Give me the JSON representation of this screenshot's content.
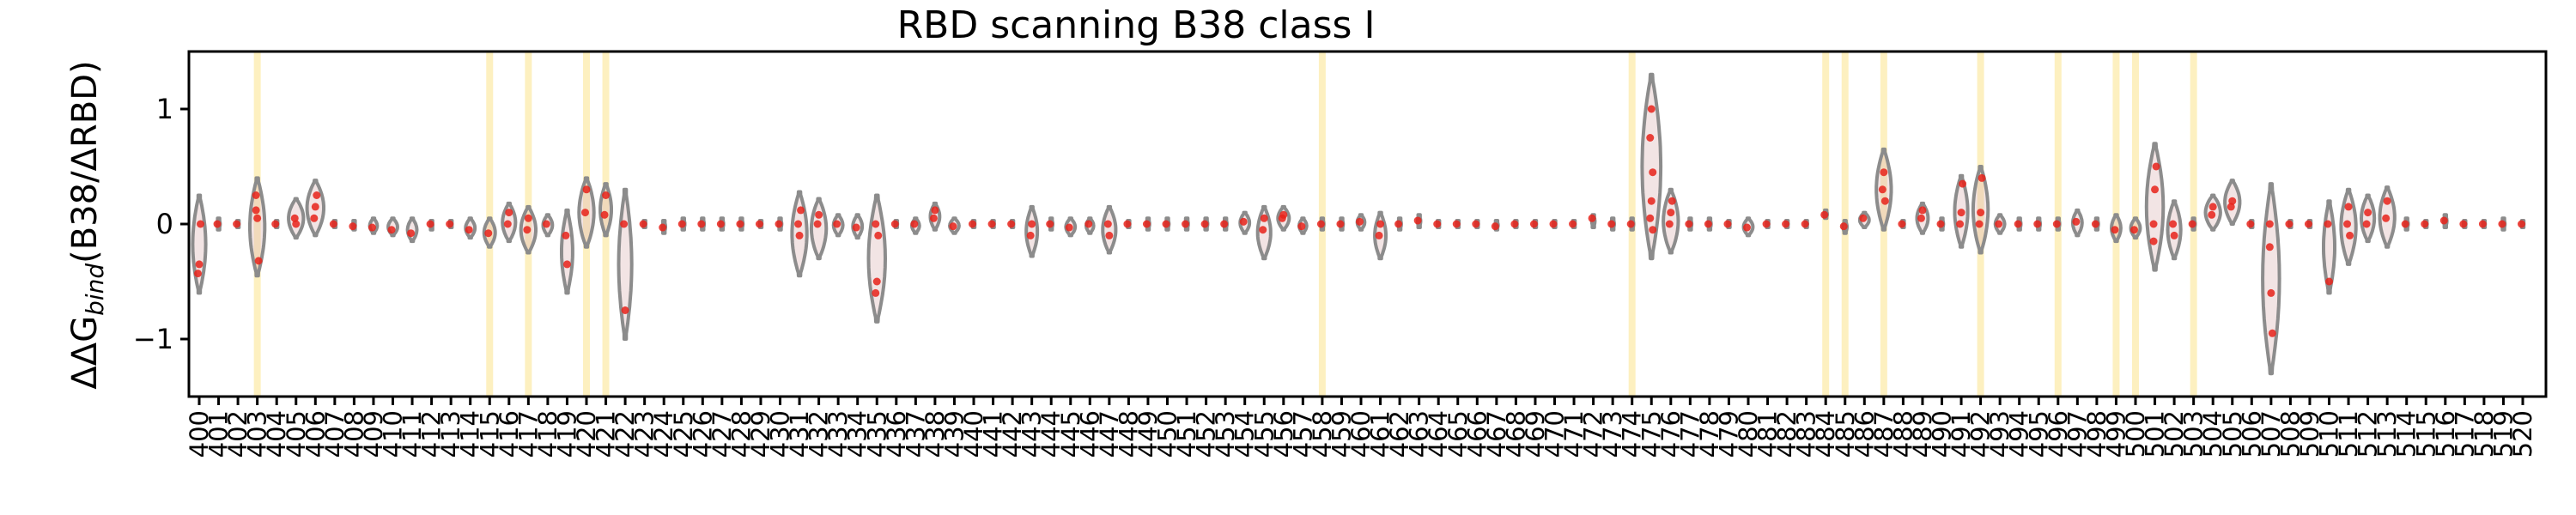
{
  "chart_data": {
    "type": "violin",
    "title": "RBD scanning B38 class I",
    "xlabel": "",
    "ylabel_prefix": "ΔΔG",
    "ylabel_subscript": "bind",
    "ylabel_suffix": "(B38/ΔRBD)",
    "xlim": [
      400,
      520
    ],
    "ylim": [
      -1.5,
      1.5
    ],
    "yticks": [
      -1,
      0,
      1
    ],
    "ytick_labels": [
      "−1",
      "0",
      "1"
    ],
    "grid": false,
    "colors": {
      "violin_edge": "#8c8c8c",
      "violin_fill": "#d9b3b3",
      "point": "#e8221a",
      "highlight": "#fdf0c0"
    },
    "highlighted_residues": [
      403,
      415,
      417,
      420,
      421,
      458,
      474,
      484,
      485,
      487,
      492,
      496,
      499,
      500,
      503
    ],
    "residues": [
      {
        "x": 400,
        "min": -0.6,
        "max": 0.25,
        "w": 0.7,
        "pts": [
          -0.43,
          -0.35,
          0.0
        ]
      },
      {
        "x": 401,
        "min": -0.05,
        "max": 0.05,
        "w": 0.4,
        "pts": [
          0.0
        ]
      },
      {
        "x": 402,
        "min": -0.03,
        "max": 0.03,
        "w": 0.3,
        "pts": [
          0.0
        ]
      },
      {
        "x": 403,
        "min": -0.45,
        "max": 0.4,
        "w": 0.8,
        "pts": [
          0.12,
          0.05,
          -0.32,
          0.25
        ]
      },
      {
        "x": 404,
        "min": -0.03,
        "max": 0.03,
        "w": 0.3,
        "pts": [
          0.0
        ]
      },
      {
        "x": 405,
        "min": -0.12,
        "max": 0.22,
        "w": 0.8,
        "pts": [
          0.05,
          0.0
        ]
      },
      {
        "x": 406,
        "min": -0.1,
        "max": 0.38,
        "w": 0.9,
        "pts": [
          0.05,
          0.15,
          0.25
        ]
      },
      {
        "x": 407,
        "min": -0.03,
        "max": 0.03,
        "w": 0.3,
        "pts": [
          0.0
        ]
      },
      {
        "x": 408,
        "min": -0.05,
        "max": 0.03,
        "w": 0.3,
        "pts": [
          -0.02
        ]
      },
      {
        "x": 409,
        "min": -0.08,
        "max": 0.05,
        "w": 0.4,
        "pts": [
          -0.03
        ]
      },
      {
        "x": 410,
        "min": -0.1,
        "max": 0.05,
        "w": 0.5,
        "pts": [
          -0.05
        ]
      },
      {
        "x": 411,
        "min": -0.15,
        "max": 0.05,
        "w": 0.5,
        "pts": [
          -0.08
        ]
      },
      {
        "x": 412,
        "min": -0.05,
        "max": 0.03,
        "w": 0.3,
        "pts": [
          0.0
        ]
      },
      {
        "x": 413,
        "min": -0.03,
        "max": 0.03,
        "w": 0.3,
        "pts": [
          0.0
        ]
      },
      {
        "x": 414,
        "min": -0.12,
        "max": 0.05,
        "w": 0.5,
        "pts": [
          -0.05
        ]
      },
      {
        "x": 415,
        "min": -0.2,
        "max": 0.05,
        "w": 0.6,
        "pts": [
          -0.08
        ]
      },
      {
        "x": 416,
        "min": -0.15,
        "max": 0.18,
        "w": 0.7,
        "pts": [
          0.0,
          0.1
        ]
      },
      {
        "x": 417,
        "min": -0.25,
        "max": 0.15,
        "w": 0.8,
        "pts": [
          -0.05,
          0.05
        ]
      },
      {
        "x": 418,
        "min": -0.1,
        "max": 0.08,
        "w": 0.5,
        "pts": [
          0.0
        ]
      },
      {
        "x": 419,
        "min": -0.6,
        "max": 0.12,
        "w": 0.6,
        "pts": [
          -0.1,
          -0.35
        ]
      },
      {
        "x": 420,
        "min": -0.2,
        "max": 0.4,
        "w": 0.8,
        "pts": [
          0.1,
          0.3
        ]
      },
      {
        "x": 421,
        "min": -0.1,
        "max": 0.35,
        "w": 0.6,
        "pts": [
          0.08,
          0.25
        ]
      },
      {
        "x": 422,
        "min": -1.0,
        "max": 0.3,
        "w": 0.7,
        "pts": [
          0.0,
          -0.75
        ]
      },
      {
        "x": 423,
        "min": -0.03,
        "max": 0.03,
        "w": 0.3,
        "pts": [
          0.0
        ]
      },
      {
        "x": 424,
        "min": -0.08,
        "max": 0.03,
        "w": 0.4,
        "pts": [
          -0.03
        ]
      },
      {
        "x": 425,
        "min": -0.05,
        "max": 0.05,
        "w": 0.4,
        "pts": [
          0.0
        ]
      },
      {
        "x": 426,
        "min": -0.05,
        "max": 0.05,
        "w": 0.4,
        "pts": [
          0.0
        ]
      },
      {
        "x": 427,
        "min": -0.05,
        "max": 0.05,
        "w": 0.4,
        "pts": [
          0.0
        ]
      },
      {
        "x": 428,
        "min": -0.05,
        "max": 0.05,
        "w": 0.4,
        "pts": [
          0.0
        ]
      },
      {
        "x": 429,
        "min": -0.03,
        "max": 0.03,
        "w": 0.3,
        "pts": [
          0.0
        ]
      },
      {
        "x": 430,
        "min": -0.05,
        "max": 0.05,
        "w": 0.4,
        "pts": [
          0.0
        ]
      },
      {
        "x": 431,
        "min": -0.45,
        "max": 0.28,
        "w": 0.8,
        "pts": [
          0.0,
          -0.1,
          0.12
        ]
      },
      {
        "x": 432,
        "min": -0.3,
        "max": 0.22,
        "w": 0.8,
        "pts": [
          0.0,
          0.08
        ]
      },
      {
        "x": 433,
        "min": -0.1,
        "max": 0.08,
        "w": 0.5,
        "pts": [
          0.0
        ]
      },
      {
        "x": 434,
        "min": -0.12,
        "max": 0.08,
        "w": 0.5,
        "pts": [
          -0.03
        ]
      },
      {
        "x": 435,
        "min": -0.85,
        "max": 0.25,
        "w": 0.9,
        "pts": [
          -0.6,
          -0.5,
          -0.1,
          0.0
        ]
      },
      {
        "x": 436,
        "min": -0.03,
        "max": 0.03,
        "w": 0.3,
        "pts": [
          0.0
        ]
      },
      {
        "x": 437,
        "min": -0.08,
        "max": 0.05,
        "w": 0.4,
        "pts": [
          0.0
        ]
      },
      {
        "x": 438,
        "min": -0.05,
        "max": 0.18,
        "w": 0.5,
        "pts": [
          0.05,
          0.12
        ]
      },
      {
        "x": 439,
        "min": -0.08,
        "max": 0.05,
        "w": 0.5,
        "pts": [
          -0.02
        ]
      },
      {
        "x": 440,
        "min": -0.03,
        "max": 0.03,
        "w": 0.3,
        "pts": [
          0.0
        ]
      },
      {
        "x": 441,
        "min": -0.03,
        "max": 0.03,
        "w": 0.3,
        "pts": [
          0.0
        ]
      },
      {
        "x": 442,
        "min": -0.03,
        "max": 0.03,
        "w": 0.3,
        "pts": [
          0.0
        ]
      },
      {
        "x": 443,
        "min": -0.28,
        "max": 0.15,
        "w": 0.6,
        "pts": [
          -0.1,
          0.0
        ]
      },
      {
        "x": 444,
        "min": -0.05,
        "max": 0.05,
        "w": 0.4,
        "pts": [
          0.0
        ]
      },
      {
        "x": 445,
        "min": -0.1,
        "max": 0.05,
        "w": 0.5,
        "pts": [
          -0.03
        ]
      },
      {
        "x": 446,
        "min": -0.08,
        "max": 0.05,
        "w": 0.4,
        "pts": [
          0.0
        ]
      },
      {
        "x": 447,
        "min": -0.25,
        "max": 0.15,
        "w": 0.7,
        "pts": [
          0.0,
          -0.1
        ]
      },
      {
        "x": 448,
        "min": -0.03,
        "max": 0.03,
        "w": 0.3,
        "pts": [
          0.0
        ]
      },
      {
        "x": 449,
        "min": -0.05,
        "max": 0.05,
        "w": 0.4,
        "pts": [
          0.0
        ]
      },
      {
        "x": 450,
        "min": -0.05,
        "max": 0.05,
        "w": 0.4,
        "pts": [
          0.0
        ]
      },
      {
        "x": 451,
        "min": -0.05,
        "max": 0.05,
        "w": 0.4,
        "pts": [
          0.0
        ]
      },
      {
        "x": 452,
        "min": -0.05,
        "max": 0.05,
        "w": 0.4,
        "pts": [
          0.0
        ]
      },
      {
        "x": 453,
        "min": -0.05,
        "max": 0.05,
        "w": 0.4,
        "pts": [
          0.0
        ]
      },
      {
        "x": 454,
        "min": -0.08,
        "max": 0.1,
        "w": 0.5,
        "pts": [
          0.02
        ]
      },
      {
        "x": 455,
        "min": -0.3,
        "max": 0.15,
        "w": 0.7,
        "pts": [
          -0.05,
          0.05
        ]
      },
      {
        "x": 456,
        "min": -0.05,
        "max": 0.15,
        "w": 0.6,
        "pts": [
          0.05,
          0.08
        ]
      },
      {
        "x": 457,
        "min": -0.08,
        "max": 0.05,
        "w": 0.4,
        "pts": [
          -0.02
        ]
      },
      {
        "x": 458,
        "min": -0.05,
        "max": 0.05,
        "w": 0.4,
        "pts": [
          0.0
        ]
      },
      {
        "x": 459,
        "min": -0.05,
        "max": 0.05,
        "w": 0.4,
        "pts": [
          0.0
        ]
      },
      {
        "x": 460,
        "min": -0.05,
        "max": 0.08,
        "w": 0.4,
        "pts": [
          0.02
        ]
      },
      {
        "x": 461,
        "min": -0.3,
        "max": 0.1,
        "w": 0.6,
        "pts": [
          -0.1,
          0.0
        ]
      },
      {
        "x": 462,
        "min": -0.05,
        "max": 0.05,
        "w": 0.4,
        "pts": [
          0.0
        ]
      },
      {
        "x": 463,
        "min": -0.03,
        "max": 0.08,
        "w": 0.4,
        "pts": [
          0.03
        ]
      },
      {
        "x": 464,
        "min": -0.03,
        "max": 0.03,
        "w": 0.3,
        "pts": [
          0.0
        ]
      },
      {
        "x": 465,
        "min": -0.03,
        "max": 0.03,
        "w": 0.3,
        "pts": [
          0.0
        ]
      },
      {
        "x": 466,
        "min": -0.03,
        "max": 0.03,
        "w": 0.3,
        "pts": [
          0.0
        ]
      },
      {
        "x": 467,
        "min": -0.05,
        "max": 0.03,
        "w": 0.4,
        "pts": [
          -0.02
        ]
      },
      {
        "x": 468,
        "min": -0.03,
        "max": 0.03,
        "w": 0.3,
        "pts": [
          0.0
        ]
      },
      {
        "x": 469,
        "min": -0.03,
        "max": 0.03,
        "w": 0.3,
        "pts": [
          0.0
        ]
      },
      {
        "x": 470,
        "min": -0.03,
        "max": 0.03,
        "w": 0.3,
        "pts": [
          0.0
        ]
      },
      {
        "x": 471,
        "min": -0.03,
        "max": 0.03,
        "w": 0.3,
        "pts": [
          0.0
        ]
      },
      {
        "x": 472,
        "min": -0.03,
        "max": 0.08,
        "w": 0.4,
        "pts": [
          0.05
        ]
      },
      {
        "x": 473,
        "min": -0.05,
        "max": 0.05,
        "w": 0.4,
        "pts": [
          0.0
        ]
      },
      {
        "x": 474,
        "min": -0.05,
        "max": 0.05,
        "w": 0.4,
        "pts": [
          0.0
        ]
      },
      {
        "x": 475,
        "min": -0.3,
        "max": 1.3,
        "w": 1.0,
        "pts": [
          0.05,
          0.2,
          0.45,
          0.75,
          1.0,
          -0.05
        ]
      },
      {
        "x": 476,
        "min": -0.25,
        "max": 0.3,
        "w": 0.8,
        "pts": [
          0.0,
          0.1,
          0.2
        ]
      },
      {
        "x": 477,
        "min": -0.05,
        "max": 0.05,
        "w": 0.4,
        "pts": [
          0.0
        ]
      },
      {
        "x": 478,
        "min": -0.05,
        "max": 0.05,
        "w": 0.4,
        "pts": [
          0.0
        ]
      },
      {
        "x": 479,
        "min": -0.03,
        "max": 0.03,
        "w": 0.3,
        "pts": [
          0.0
        ]
      },
      {
        "x": 480,
        "min": -0.1,
        "max": 0.05,
        "w": 0.5,
        "pts": [
          -0.03
        ]
      },
      {
        "x": 481,
        "min": -0.03,
        "max": 0.03,
        "w": 0.3,
        "pts": [
          0.0
        ]
      },
      {
        "x": 482,
        "min": -0.03,
        "max": 0.03,
        "w": 0.3,
        "pts": [
          0.0
        ]
      },
      {
        "x": 483,
        "min": -0.03,
        "max": 0.03,
        "w": 0.3,
        "pts": [
          0.0
        ]
      },
      {
        "x": 484,
        "min": 0.05,
        "max": 0.12,
        "w": 0.4,
        "pts": [
          0.08
        ]
      },
      {
        "x": 485,
        "min": -0.08,
        "max": 0.03,
        "w": 0.5,
        "pts": [
          -0.02
        ]
      },
      {
        "x": 486,
        "min": -0.03,
        "max": 0.1,
        "w": 0.5,
        "pts": [
          0.05
        ]
      },
      {
        "x": 487,
        "min": -0.05,
        "max": 0.65,
        "w": 0.8,
        "pts": [
          0.3,
          0.45,
          0.2
        ]
      },
      {
        "x": 488,
        "min": -0.03,
        "max": 0.03,
        "w": 0.3,
        "pts": [
          0.0
        ]
      },
      {
        "x": 489,
        "min": -0.08,
        "max": 0.18,
        "w": 0.6,
        "pts": [
          0.05,
          0.12
        ]
      },
      {
        "x": 490,
        "min": -0.05,
        "max": 0.05,
        "w": 0.4,
        "pts": [
          0.0
        ]
      },
      {
        "x": 491,
        "min": -0.2,
        "max": 0.42,
        "w": 0.7,
        "pts": [
          0.0,
          0.1,
          0.35
        ]
      },
      {
        "x": 492,
        "min": -0.25,
        "max": 0.5,
        "w": 0.8,
        "pts": [
          0.0,
          0.1,
          0.4
        ]
      },
      {
        "x": 493,
        "min": -0.08,
        "max": 0.08,
        "w": 0.5,
        "pts": [
          0.0
        ]
      },
      {
        "x": 494,
        "min": -0.05,
        "max": 0.05,
        "w": 0.4,
        "pts": [
          0.0
        ]
      },
      {
        "x": 495,
        "min": -0.05,
        "max": 0.05,
        "w": 0.4,
        "pts": [
          0.0
        ]
      },
      {
        "x": 496,
        "min": -0.05,
        "max": 0.05,
        "w": 0.4,
        "pts": [
          0.0
        ]
      },
      {
        "x": 497,
        "min": -0.1,
        "max": 0.12,
        "w": 0.5,
        "pts": [
          0.02
        ]
      },
      {
        "x": 498,
        "min": -0.05,
        "max": 0.05,
        "w": 0.4,
        "pts": [
          0.0
        ]
      },
      {
        "x": 499,
        "min": -0.15,
        "max": 0.08,
        "w": 0.5,
        "pts": [
          -0.05
        ]
      },
      {
        "x": 500,
        "min": -0.12,
        "max": 0.05,
        "w": 0.5,
        "pts": [
          -0.05
        ]
      },
      {
        "x": 501,
        "min": -0.4,
        "max": 0.7,
        "w": 0.9,
        "pts": [
          0.0,
          0.3,
          0.5,
          -0.15
        ]
      },
      {
        "x": 502,
        "min": -0.3,
        "max": 0.2,
        "w": 0.7,
        "pts": [
          0.0,
          -0.1
        ]
      },
      {
        "x": 503,
        "min": -0.05,
        "max": 0.05,
        "w": 0.4,
        "pts": [
          0.0
        ]
      },
      {
        "x": 504,
        "min": -0.05,
        "max": 0.25,
        "w": 0.8,
        "pts": [
          0.08,
          0.15
        ]
      },
      {
        "x": 505,
        "min": 0.0,
        "max": 0.38,
        "w": 0.8,
        "pts": [
          0.15,
          0.2
        ]
      },
      {
        "x": 506,
        "min": -0.03,
        "max": 0.03,
        "w": 0.3,
        "pts": [
          0.0
        ]
      },
      {
        "x": 507,
        "min": -1.3,
        "max": 0.35,
        "w": 0.9,
        "pts": [
          -0.2,
          -0.6,
          -0.95,
          0.0
        ]
      },
      {
        "x": 508,
        "min": -0.03,
        "max": 0.03,
        "w": 0.3,
        "pts": [
          0.0
        ]
      },
      {
        "x": 509,
        "min": -0.03,
        "max": 0.03,
        "w": 0.3,
        "pts": [
          0.0
        ]
      },
      {
        "x": 510,
        "min": -0.6,
        "max": 0.2,
        "w": 0.6,
        "pts": [
          0.0,
          -0.5
        ]
      },
      {
        "x": 511,
        "min": -0.35,
        "max": 0.3,
        "w": 0.8,
        "pts": [
          0.0,
          0.15,
          -0.1
        ]
      },
      {
        "x": 512,
        "min": -0.15,
        "max": 0.25,
        "w": 0.7,
        "pts": [
          0.0,
          0.1
        ]
      },
      {
        "x": 513,
        "min": -0.2,
        "max": 0.32,
        "w": 0.8,
        "pts": [
          0.05,
          0.2
        ]
      },
      {
        "x": 514,
        "min": -0.05,
        "max": 0.05,
        "w": 0.4,
        "pts": [
          0.0
        ]
      },
      {
        "x": 515,
        "min": -0.03,
        "max": 0.03,
        "w": 0.3,
        "pts": [
          0.0
        ]
      },
      {
        "x": 516,
        "min": -0.03,
        "max": 0.08,
        "w": 0.4,
        "pts": [
          0.03
        ]
      },
      {
        "x": 517,
        "min": -0.03,
        "max": 0.03,
        "w": 0.3,
        "pts": [
          0.0
        ]
      },
      {
        "x": 518,
        "min": -0.03,
        "max": 0.03,
        "w": 0.3,
        "pts": [
          0.0
        ]
      },
      {
        "x": 519,
        "min": -0.05,
        "max": 0.05,
        "w": 0.4,
        "pts": [
          0.0
        ]
      },
      {
        "x": 520,
        "min": -0.03,
        "max": 0.03,
        "w": 0.3,
        "pts": [
          0.0
        ]
      }
    ]
  }
}
